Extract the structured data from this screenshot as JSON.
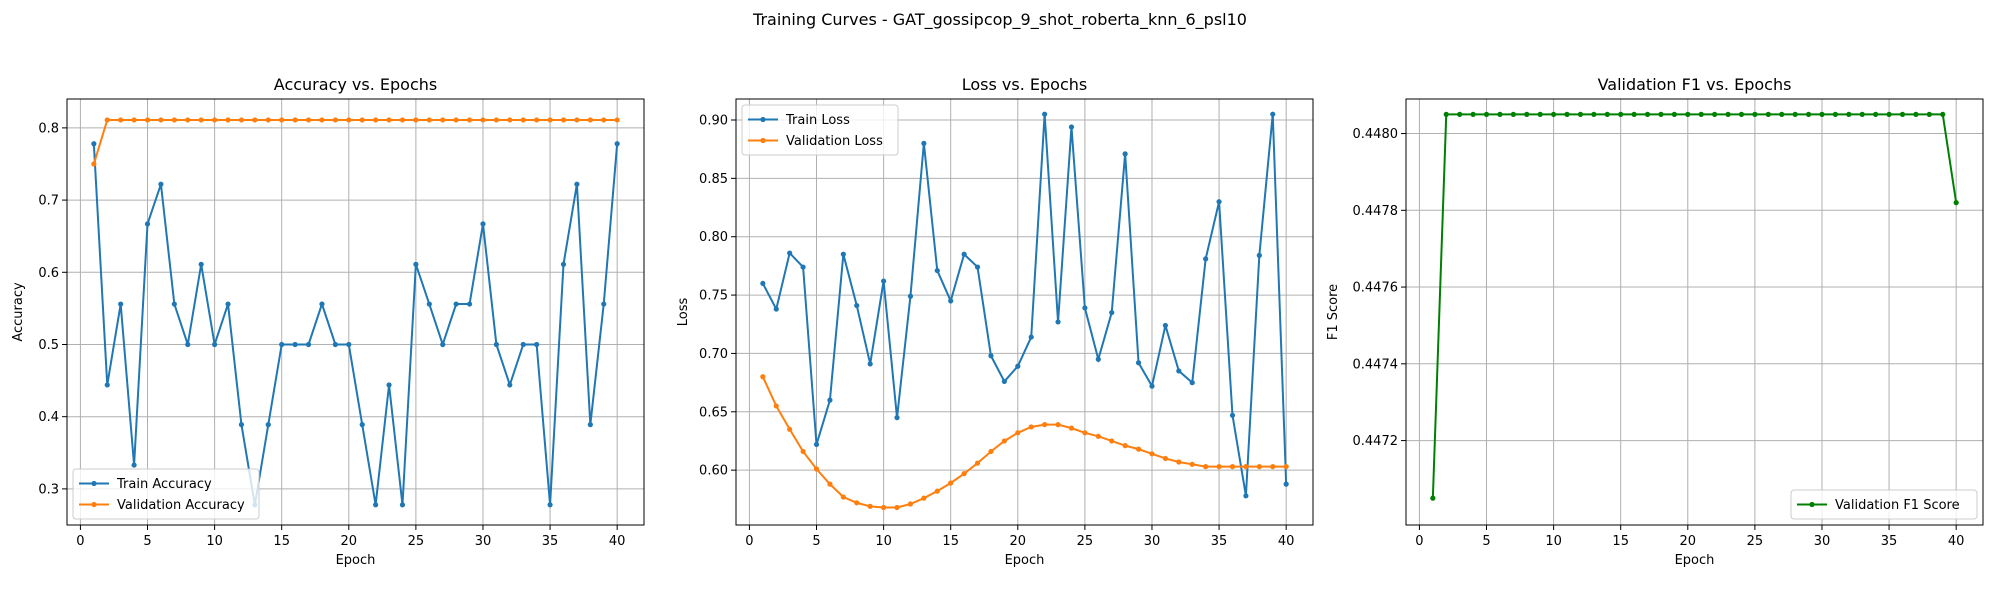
{
  "figure_title": "Training Curves - GAT_gossipcop_9_shot_roberta_knn_6_psl10",
  "colors": {
    "blue": "#1f77b4",
    "orange": "#ff7f0e",
    "green": "#008000",
    "grid": "#b0b0b0"
  },
  "chart_data": [
    {
      "type": "line",
      "title": "Accuracy vs. Epochs",
      "xlabel": "Epoch",
      "ylabel": "Accuracy",
      "xlim": [
        -1,
        42
      ],
      "ylim": [
        0.25,
        0.84
      ],
      "xticks": [
        0,
        5,
        10,
        15,
        20,
        25,
        30,
        35,
        40
      ],
      "yticks": [
        0.3,
        0.4,
        0.5,
        0.6,
        0.7,
        0.8
      ],
      "tick_decimals": 1,
      "grid": true,
      "legend_position": "lower-left",
      "x": [
        1,
        2,
        3,
        4,
        5,
        6,
        7,
        8,
        9,
        10,
        11,
        12,
        13,
        14,
        15,
        16,
        17,
        18,
        19,
        20,
        21,
        22,
        23,
        24,
        25,
        26,
        27,
        28,
        29,
        30,
        31,
        32,
        33,
        34,
        35,
        36,
        37,
        38,
        39,
        40
      ],
      "series": [
        {
          "name": "Train Accuracy",
          "color": "#1f77b4",
          "values": [
            0.778,
            0.444,
            0.556,
            0.333,
            0.667,
            0.722,
            0.556,
            0.5,
            0.611,
            0.5,
            0.556,
            0.389,
            0.278,
            0.389,
            0.5,
            0.5,
            0.5,
            0.556,
            0.5,
            0.5,
            0.389,
            0.278,
            0.444,
            0.278,
            0.611,
            0.556,
            0.5,
            0.556,
            0.556,
            0.667,
            0.5,
            0.444,
            0.5,
            0.5,
            0.278,
            0.611,
            0.722,
            0.389,
            0.556,
            0.778
          ]
        },
        {
          "name": "Validation Accuracy",
          "color": "#ff7f0e",
          "values": [
            0.75,
            0.811,
            0.811,
            0.811,
            0.811,
            0.811,
            0.811,
            0.811,
            0.811,
            0.811,
            0.811,
            0.811,
            0.811,
            0.811,
            0.811,
            0.811,
            0.811,
            0.811,
            0.811,
            0.811,
            0.811,
            0.811,
            0.811,
            0.811,
            0.811,
            0.811,
            0.811,
            0.811,
            0.811,
            0.811,
            0.811,
            0.811,
            0.811,
            0.811,
            0.811,
            0.811,
            0.811,
            0.811,
            0.811,
            0.811
          ]
        }
      ]
    },
    {
      "type": "line",
      "title": "Loss vs. Epochs",
      "xlabel": "Epoch",
      "ylabel": "Loss",
      "xlim": [
        -1,
        42
      ],
      "ylim": [
        0.553,
        0.918
      ],
      "xticks": [
        0,
        5,
        10,
        15,
        20,
        25,
        30,
        35,
        40
      ],
      "yticks": [
        0.6,
        0.65,
        0.7,
        0.75,
        0.8,
        0.85,
        0.9
      ],
      "tick_decimals": 2,
      "grid": true,
      "legend_position": "upper-left",
      "x": [
        1,
        2,
        3,
        4,
        5,
        6,
        7,
        8,
        9,
        10,
        11,
        12,
        13,
        14,
        15,
        16,
        17,
        18,
        19,
        20,
        21,
        22,
        23,
        24,
        25,
        26,
        27,
        28,
        29,
        30,
        31,
        32,
        33,
        34,
        35,
        36,
        37,
        38,
        39,
        40
      ],
      "series": [
        {
          "name": "Train Loss",
          "color": "#1f77b4",
          "values": [
            0.76,
            0.738,
            0.786,
            0.774,
            0.622,
            0.66,
            0.785,
            0.741,
            0.691,
            0.762,
            0.645,
            0.749,
            0.88,
            0.771,
            0.745,
            0.785,
            0.774,
            0.698,
            0.676,
            0.689,
            0.714,
            0.905,
            0.727,
            0.894,
            0.739,
            0.695,
            0.735,
            0.871,
            0.692,
            0.672,
            0.724,
            0.685,
            0.675,
            0.781,
            0.83,
            0.647,
            0.578,
            0.784,
            0.905,
            0.588
          ]
        },
        {
          "name": "Validation Loss",
          "color": "#ff7f0e",
          "values": [
            0.68,
            0.655,
            0.635,
            0.616,
            0.601,
            0.588,
            0.577,
            0.572,
            0.569,
            0.568,
            0.568,
            0.571,
            0.576,
            0.582,
            0.589,
            0.597,
            0.606,
            0.616,
            0.625,
            0.632,
            0.637,
            0.639,
            0.639,
            0.636,
            0.632,
            0.629,
            0.625,
            0.621,
            0.618,
            0.614,
            0.61,
            0.607,
            0.605,
            0.603,
            0.603,
            0.603,
            0.603,
            0.603,
            0.603,
            0.603
          ]
        }
      ]
    },
    {
      "type": "line",
      "title": "Validation F1 vs. Epochs",
      "xlabel": "Epoch",
      "ylabel": "F1 Score",
      "xlim": [
        -1,
        42
      ],
      "ylim": [
        0.44698,
        0.44809
      ],
      "xticks": [
        0,
        5,
        10,
        15,
        20,
        25,
        30,
        35,
        40
      ],
      "yticks": [
        0.4472,
        0.4474,
        0.4476,
        0.4478,
        0.448
      ],
      "tick_decimals": 4,
      "grid": true,
      "legend_position": "lower-right",
      "x": [
        1,
        2,
        3,
        4,
        5,
        6,
        7,
        8,
        9,
        10,
        11,
        12,
        13,
        14,
        15,
        16,
        17,
        18,
        19,
        20,
        21,
        22,
        23,
        24,
        25,
        26,
        27,
        28,
        29,
        30,
        31,
        32,
        33,
        34,
        35,
        36,
        37,
        38,
        39,
        40
      ],
      "series": [
        {
          "name": "Validation F1 Score",
          "color": "#008000",
          "values": [
            0.44705,
            0.44805,
            0.44805,
            0.44805,
            0.44805,
            0.44805,
            0.44805,
            0.44805,
            0.44805,
            0.44805,
            0.44805,
            0.44805,
            0.44805,
            0.44805,
            0.44805,
            0.44805,
            0.44805,
            0.44805,
            0.44805,
            0.44805,
            0.44805,
            0.44805,
            0.44805,
            0.44805,
            0.44805,
            0.44805,
            0.44805,
            0.44805,
            0.44805,
            0.44805,
            0.44805,
            0.44805,
            0.44805,
            0.44805,
            0.44805,
            0.44805,
            0.44805,
            0.44805,
            0.44805,
            0.44782
          ]
        }
      ]
    }
  ]
}
